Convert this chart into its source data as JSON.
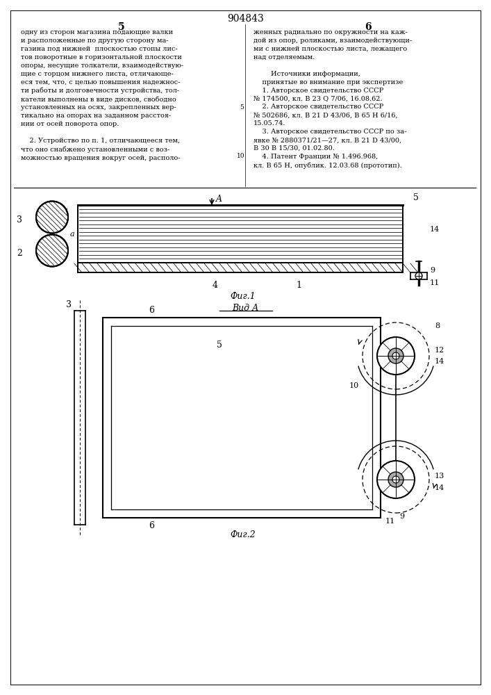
{
  "page_width": 7.07,
  "page_height": 10.0,
  "bg_color": "#ffffff",
  "text_color": "#000000",
  "line_color": "#000000",
  "header_number": "904843",
  "col_left_number": "5",
  "col_right_number": "6",
  "left_text": "одну из сторон магазина подающие валки\nи расположенные по другую сторону ма-\nгазина под нижней  плоскостью стопы лис-\nтов поворотные в горизонтальной плоскости\nопоры, несущие толкатели, взаимодействую-\nщие с торцом нижнего листа, отличающе-\nеся тем, что, с целью повышения надежнос-\nти работы и долговечности устройства, тол-\nкатели выполнены в виде дисков, свободно\nустановленных на осях, закрепленных вер-\nтикально на опорах на заданном расстоя-\nнии от осей поворота опор.\n\n    2. Устройство по п. 1, отличающееся тем,\nчто оно снабжено установленными с воз-\nможностью вращения вокруг осей, располо-",
  "right_text": "женных радиально по окружности на каж-\nдой из опор, роликами, взаимодействующи-\nми с нижней плоскостью листа, лежащего\nнад отделяемым.\n\n        Источники информации,\n    принятые во внимание при экспертизе\n    1. Авторское свидетельство СССР\n№ 174500, кл. В 23 Q 7/06, 16.08.62.\n    2. Авторское свидетельство СССР\n№ 502686, кл. В 21 D 43/06, В 65 Н 6/16,\n15.05.74.\n    3. Авторское свидетельство СССР по за-\nявке № 2880371/21—27, кл. В 21 D 43/00,\nВ 30 В 15/30, 01.02.80.\n    4. Патент Франции № 1.496.968,\nкл. В 65 Н, опублик. 12.03.68 (прототип).",
  "fig1_label": "Фиг.1",
  "fig2_label": "Фиг.2",
  "vid_a_label": "Вид А",
  "margin_5": "5",
  "margin_10": "10"
}
